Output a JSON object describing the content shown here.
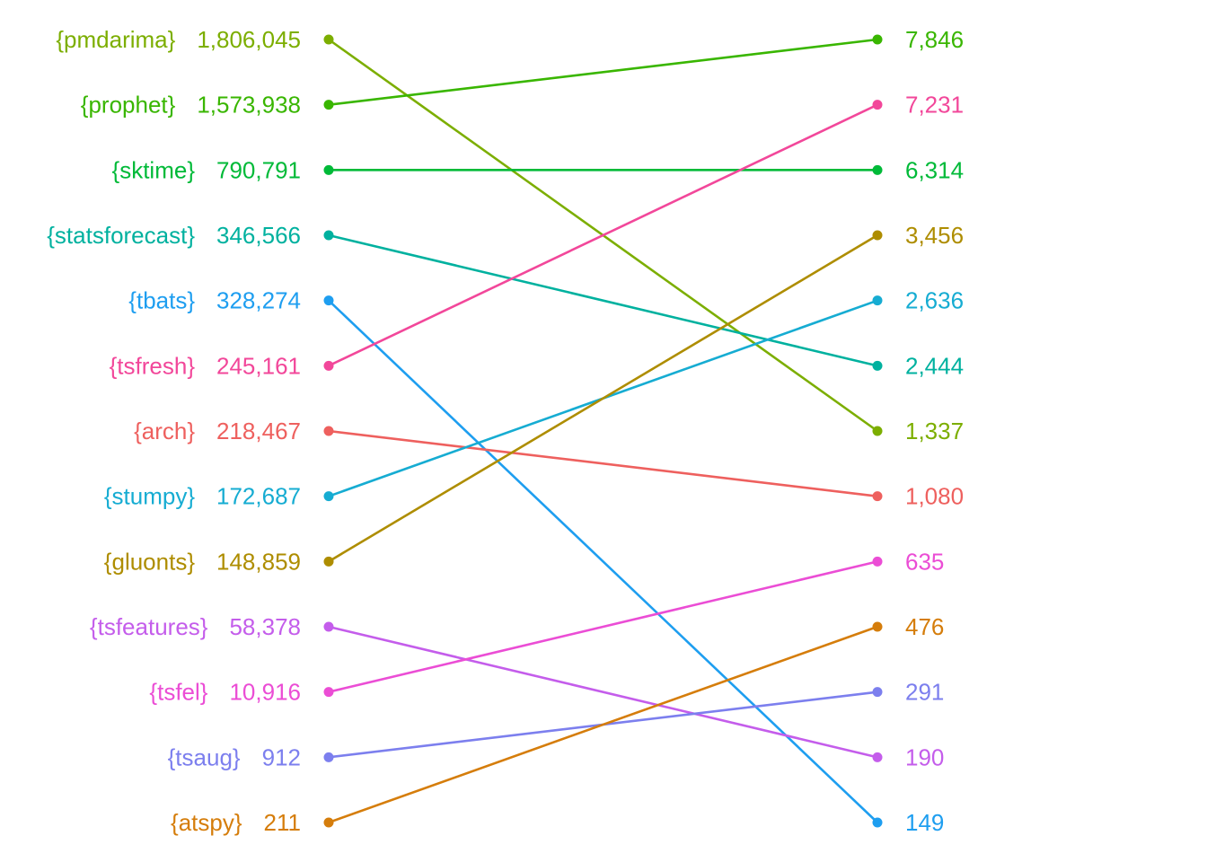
{
  "chart_data": {
    "type": "slope",
    "title": "",
    "xlabel": "",
    "ylabel": "",
    "grid": false,
    "legend": "none",
    "series": [
      {
        "name": "{pmdarima}",
        "left_value": "1,806,045",
        "right_value": "1,337",
        "left_rank": 1,
        "right_rank": 7,
        "color": "#7CAE00"
      },
      {
        "name": "{prophet}",
        "left_value": "1,573,938",
        "right_value": "7,846",
        "left_rank": 2,
        "right_rank": 1,
        "color": "#39B600"
      },
      {
        "name": "{sktime}",
        "left_value": "790,791",
        "right_value": "6,314",
        "left_rank": 3,
        "right_rank": 3,
        "color": "#00BA38"
      },
      {
        "name": "{statsforecast}",
        "left_value": "346,566",
        "right_value": "2,444",
        "left_rank": 4,
        "right_rank": 6,
        "color": "#00B19F"
      },
      {
        "name": "{tbats}",
        "left_value": "328,274",
        "right_value": "149",
        "left_rank": 5,
        "right_rank": 13,
        "color": "#1E9EF0"
      },
      {
        "name": "{tsfresh}",
        "left_value": "245,161",
        "right_value": "7,231",
        "left_rank": 6,
        "right_rank": 2,
        "color": "#F2479A"
      },
      {
        "name": "{arch}",
        "left_value": "218,467",
        "right_value": "1,080",
        "left_rank": 7,
        "right_rank": 8,
        "color": "#EE605E"
      },
      {
        "name": "{stumpy}",
        "left_value": "172,687",
        "right_value": "2,636",
        "left_rank": 8,
        "right_rank": 5,
        "color": "#16ACD2"
      },
      {
        "name": "{gluonts}",
        "left_value": "148,859",
        "right_value": "3,456",
        "left_rank": 9,
        "right_rank": 4,
        "color": "#AE8D00"
      },
      {
        "name": "{tsfeatures}",
        "left_value": "58,378",
        "right_value": "190",
        "left_rank": 10,
        "right_rank": 12,
        "color": "#C45DEB"
      },
      {
        "name": "{tsfel}",
        "left_value": "10,916",
        "right_value": "635",
        "left_rank": 11,
        "right_rank": 9,
        "color": "#EB4DD5"
      },
      {
        "name": "{tsaug}",
        "left_value": "912",
        "right_value": "291",
        "left_rank": 12,
        "right_rank": 11,
        "color": "#7C7FEE"
      },
      {
        "name": "{atspy}",
        "left_value": "211",
        "right_value": "476",
        "left_rank": 13,
        "right_rank": 10,
        "color": "#D57D0B"
      }
    ]
  }
}
